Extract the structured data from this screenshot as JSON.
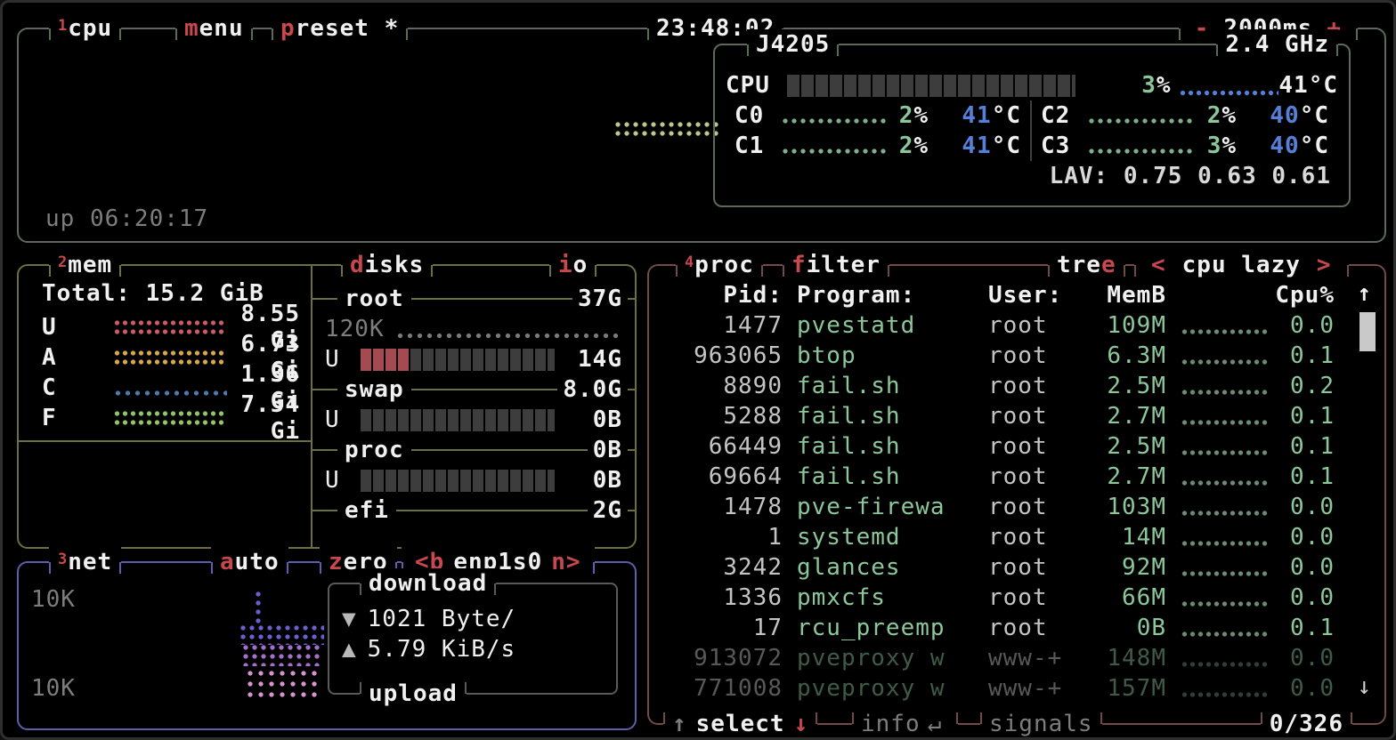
{
  "theme": {
    "bg": "#000000",
    "screen_border": "#2e2e2e",
    "cpu_border": "#5c6a5c",
    "mem_border": "#6e6e40",
    "net_border": "#5e5eaa",
    "proc_border": "#714a4a",
    "red": "#c8484e",
    "green": "#8cc79b",
    "blue": "#567fd8",
    "white": "#f0f0f0",
    "gray": "#7d7d7d",
    "light_gray": "#c4c4c4",
    "meter_block": "#3d3d3d",
    "disk_used_a": "#a64a52",
    "mem_u_dots": "#cc5b6a",
    "mem_a_dots": "#d8a948",
    "mem_c_dots": "#4f7ab0",
    "mem_f_dots": "#93c566",
    "cpu_graph_dots": "#b9c98b",
    "core_dots": "#7fae8d",
    "proc_dots": "#6d8a77",
    "io_dots": "#7a7a7a",
    "net_dots_1": "#6a5fd0",
    "net_dots_2": "#a370c8",
    "net_dots_3": "#d795cd",
    "scrollbar": "#c9c9c9"
  },
  "cpu_box": {
    "sup": "1",
    "title": "cpu",
    "menu_hot": "m",
    "menu_rest": "enu",
    "preset_hot": "p",
    "preset_rest": "reset *",
    "clock": "23:48:02",
    "interval_minus": "-",
    "interval_value": "2000ms",
    "interval_plus": "+",
    "uptime": "up 06:20:17",
    "panel": {
      "model": "J4205",
      "freq": "2.4 GHz",
      "total_label": "CPU",
      "total_pct": "3",
      "pct_sign": "%",
      "total_temp": "41",
      "deg": "°C",
      "cores": [
        {
          "label": "C0",
          "pct": "2",
          "temp": "41"
        },
        {
          "label": "C1",
          "pct": "2",
          "temp": "41"
        },
        {
          "label": "C2",
          "pct": "2",
          "temp": "40"
        },
        {
          "label": "C3",
          "pct": "3",
          "temp": "40"
        }
      ],
      "lav": "LAV: 0.75 0.63 0.61"
    }
  },
  "mem_box": {
    "sup": "2",
    "title": "mem",
    "total_label": "Total:",
    "total_value": "15.2 GiB",
    "rows": [
      {
        "label": "U",
        "value": "8.55 Gi"
      },
      {
        "label": "A",
        "value": "6.73 Gi"
      },
      {
        "label": "C",
        "value": "1.36 Gi"
      },
      {
        "label": "F",
        "value": "7.54 Gi"
      }
    ],
    "disks": {
      "title_hot": "d",
      "title_rest": "isks",
      "io_hot": "i",
      "io_rest": "o",
      "root": {
        "name": "root",
        "size": "37G",
        "io": "120K",
        "used_label": "U",
        "used": "14G"
      },
      "swap": {
        "name": "swap",
        "size": "8.0G",
        "used_label": "U",
        "used": "0B"
      },
      "proc": {
        "name": "proc",
        "size": "0B",
        "used_label": "U",
        "used": "0B"
      },
      "efi": {
        "name": "efi",
        "size": "2G"
      }
    }
  },
  "net_box": {
    "sup": "3",
    "title": "net",
    "auto_hot": "a",
    "auto_rest": "uto",
    "zero_hot": "z",
    "zero_rest": "ero",
    "b_button": "<b",
    "iface": "enp1s0",
    "n_button": "n>",
    "scale_top": "10K",
    "scale_bottom": "10K",
    "download_label": "download",
    "upload_label": "upload",
    "down_arrow": "▼",
    "down_value": "1021 Byte/",
    "up_arrow": "▲",
    "up_value": "5.79 KiB/s"
  },
  "proc_box": {
    "sup": "4",
    "title": "proc",
    "filter_hot": "f",
    "filter_rest": "ilter",
    "tree_rest": "tre",
    "tree_hot": "e",
    "sort_prev": "<",
    "sort_label": "cpu lazy",
    "sort_next": ">",
    "headers": {
      "pid": "Pid:",
      "program": "Program:",
      "user": "User:",
      "mem": "MemB",
      "cpu": "Cpu%"
    },
    "scroll_up": "↑",
    "scroll_down": "↓",
    "rows": [
      {
        "pid": "1477",
        "program": "pvestatd",
        "user": "root",
        "mem": "109M",
        "cpu": "0.0",
        "cls": ""
      },
      {
        "pid": "963065",
        "program": "btop",
        "user": "root",
        "mem": "6.3M",
        "cpu": "0.1",
        "cls": ""
      },
      {
        "pid": "8890",
        "program": "fail.sh",
        "user": "root",
        "mem": "2.5M",
        "cpu": "0.2",
        "cls": ""
      },
      {
        "pid": "5288",
        "program": "fail.sh",
        "user": "root",
        "mem": "2.7M",
        "cpu": "0.1",
        "cls": ""
      },
      {
        "pid": "66449",
        "program": "fail.sh",
        "user": "root",
        "mem": "2.5M",
        "cpu": "0.1",
        "cls": ""
      },
      {
        "pid": "69664",
        "program": "fail.sh",
        "user": "root",
        "mem": "2.7M",
        "cpu": "0.1",
        "cls": ""
      },
      {
        "pid": "1478",
        "program": "pve-firewa",
        "user": "root",
        "mem": "103M",
        "cpu": "0.0",
        "cls": ""
      },
      {
        "pid": "1",
        "program": "systemd",
        "user": "root",
        "mem": "14M",
        "cpu": "0.0",
        "cls": ""
      },
      {
        "pid": "3242",
        "program": "glances",
        "user": "root",
        "mem": "92M",
        "cpu": "0.0",
        "cls": ""
      },
      {
        "pid": "1336",
        "program": "pmxcfs",
        "user": "root",
        "mem": "66M",
        "cpu": "0.0",
        "cls": ""
      },
      {
        "pid": "17",
        "program": "rcu_preemp",
        "user": "root",
        "mem": "0B",
        "cpu": "0.1",
        "cls": ""
      },
      {
        "pid": "913072",
        "program": "pveproxy w",
        "user": "www-+",
        "mem": "148M",
        "cpu": "0.0",
        "cls": "dim"
      },
      {
        "pid": "771008",
        "program": "pveproxy w",
        "user": "www-+",
        "mem": "157M",
        "cpu": "0.0",
        "cls": "dim"
      }
    ],
    "footer": {
      "select_up": "↑",
      "select": "select",
      "select_down": "↓",
      "info": "info",
      "info_key": "↵",
      "signals": "signals",
      "count": "0/326"
    }
  }
}
